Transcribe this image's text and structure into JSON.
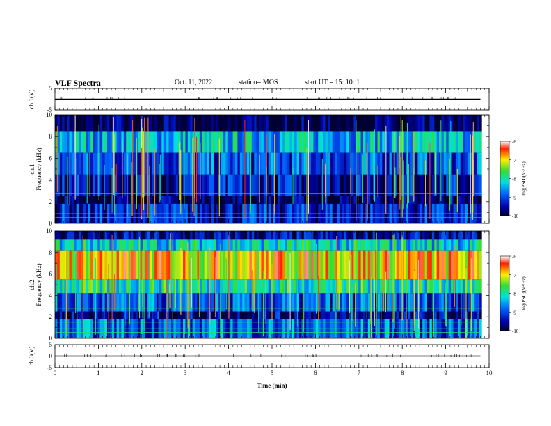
{
  "header": {
    "title": "VLF Spectra",
    "date": "Oct. 11, 2022",
    "station": "station= MOS",
    "start": "start UT =  15: 10: 1"
  },
  "chart_data": [
    {
      "type": "line",
      "panel": "ch1-waveform",
      "ylabel": "ch.1(V)",
      "ylim": [
        -5,
        5
      ],
      "yticks": [
        "5",
        "-5"
      ],
      "xlim": [
        0,
        10
      ],
      "series": [
        {
          "x": [
            0,
            9.8
          ],
          "y": [
            0,
            0
          ]
        }
      ]
    },
    {
      "type": "heatmap",
      "panel": "ch1-spectrogram",
      "ylabel_top": "ch.1",
      "ylabel": "Frequency (kHz)",
      "ylim": [
        0,
        10
      ],
      "yticks": [
        "0",
        "2",
        "4",
        "6",
        "8",
        "10"
      ],
      "xlim": [
        0,
        10
      ],
      "colorbar": {
        "label": "log(PSD)(V²/Hz)",
        "range": [
          -10,
          -6
        ],
        "ticks": [
          "-6",
          "-7",
          "-8",
          "-9",
          "-10"
        ]
      },
      "bands": [
        {
          "from": 8.5,
          "to": 10,
          "level": -10.0
        },
        {
          "from": 6.5,
          "to": 8.5,
          "level": -8.4
        },
        {
          "from": 4.5,
          "to": 6.5,
          "level": -9.0
        },
        {
          "from": 2.5,
          "to": 4.5,
          "level": -9.4
        },
        {
          "from": 1.8,
          "to": 2.5,
          "level": -9.9
        },
        {
          "from": 0,
          "to": 1.8,
          "level": -9.3
        }
      ]
    },
    {
      "type": "heatmap",
      "panel": "ch2-spectrogram",
      "ylabel_top": "ch.2",
      "ylabel": "Frequency (kHz)",
      "ylim": [
        0,
        10
      ],
      "yticks": [
        "0",
        "2",
        "4",
        "6",
        "8",
        "10"
      ],
      "xlim": [
        0,
        10
      ],
      "colorbar": {
        "label": "log(PSD)(V²/Hz)",
        "range": [
          -10,
          -6
        ],
        "ticks": [
          "-6",
          "-7",
          "-8",
          "-9",
          "-10"
        ]
      },
      "bands": [
        {
          "from": 9.2,
          "to": 10,
          "level": -9.6
        },
        {
          "from": 8.2,
          "to": 9.2,
          "level": -8.2
        },
        {
          "from": 5.5,
          "to": 8.2,
          "level": -6.9
        },
        {
          "from": 4.2,
          "to": 5.5,
          "level": -8.0
        },
        {
          "from": 2.5,
          "to": 4.2,
          "level": -9.0
        },
        {
          "from": 1.8,
          "to": 2.5,
          "level": -9.6
        },
        {
          "from": 0,
          "to": 1.8,
          "level": -8.9
        }
      ]
    },
    {
      "type": "line",
      "panel": "ch3-waveform",
      "ylabel": "ch.3(V)",
      "ylim": [
        -5,
        5
      ],
      "yticks": [
        "5",
        "0",
        "-5"
      ],
      "xlim": [
        0,
        10
      ],
      "xlabel": "Time (min)",
      "xticks": [
        "0",
        "1",
        "2",
        "3",
        "4",
        "5",
        "6",
        "7",
        "8",
        "9",
        "10"
      ],
      "series": [
        {
          "x": [
            0,
            9.8
          ],
          "y": [
            0,
            0
          ]
        }
      ]
    }
  ]
}
